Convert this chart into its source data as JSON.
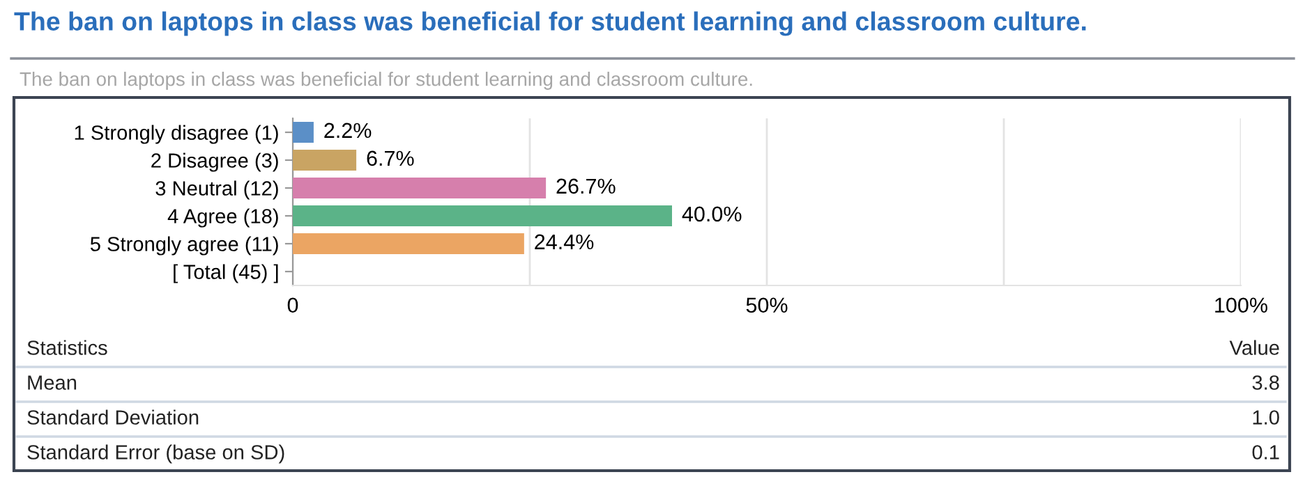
{
  "chart_data": {
    "type": "bar",
    "orientation": "horizontal",
    "title": "The ban on laptops in class was beneficial for student learning and classroom culture.",
    "subtitle": "The ban on laptops in class was beneficial for student learning and classroom culture.",
    "categories": [
      "1 Strongly disagree (1)",
      "2 Disagree (3)",
      "3 Neutral (12)",
      "4 Agree (18)",
      "5 Strongly agree (11)",
      "[ Total (45) ]"
    ],
    "values": [
      2.2,
      6.7,
      26.7,
      40.0,
      24.4,
      null
    ],
    "colors": [
      "#5b8fc7",
      "#c9a463",
      "#d67fac",
      "#5bb388",
      "#eba563",
      "#ffffff"
    ],
    "value_labels": [
      "2.2%",
      "6.7%",
      "26.7%",
      "40.0%",
      "24.4%",
      null
    ],
    "xlim": [
      0,
      100
    ],
    "xticks": [
      0,
      {
        "value": 25,
        "label": null
      },
      {
        "value": 50,
        "label": "50%"
      },
      {
        "value": 75,
        "label": null
      },
      {
        "value": 100,
        "label": "100%"
      }
    ],
    "grid": "x",
    "annotations": [
      "Statistics",
      "Value",
      "Mean",
      "3.8",
      "Standard Deviation",
      "1.0",
      "Standard Error (base on SD)",
      "0.1"
    ]
  }
}
